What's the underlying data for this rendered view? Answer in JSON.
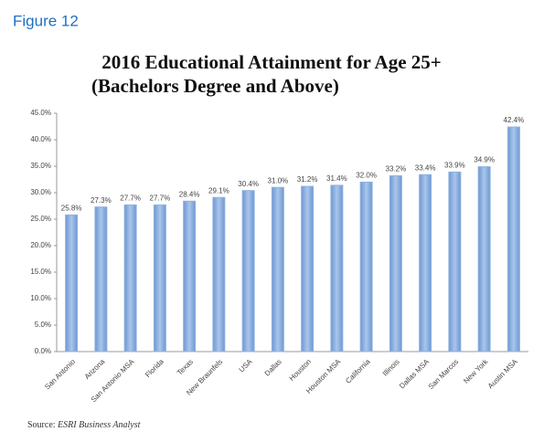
{
  "figure_label": "Figure 12",
  "chart_data": {
    "type": "bar",
    "title": "2016 Educational Attainment for Age 25+",
    "subtitle": "(Bachelors Degree and Above)",
    "categories": [
      "San Antonio",
      "Arizona",
      "San Antonio MSA",
      "Florida",
      "Texas",
      "New Braunfels",
      "USA",
      "Dallas",
      "Houston",
      "Houston MSA",
      "California",
      "Illinois",
      "Dallas MSA",
      "San Marcos",
      "New York",
      "Austin MSA"
    ],
    "values": [
      25.8,
      27.3,
      27.7,
      27.7,
      28.4,
      29.1,
      30.4,
      31.0,
      31.2,
      31.4,
      32.0,
      33.2,
      33.4,
      33.9,
      34.9,
      42.4
    ],
    "value_labels": [
      "25.8%",
      "27.3%",
      "27.7%",
      "27.7%",
      "28.4%",
      "29.1%",
      "30.4%",
      "31.0%",
      "31.2%",
      "31.4%",
      "32.0%",
      "33.2%",
      "33.4%",
      "33.9%",
      "34.9%",
      "42.4%"
    ],
    "color": "#8db3e2",
    "ylim": [
      0,
      45
    ],
    "yticks": [
      {
        "value": 0,
        "label": "0.0%"
      },
      {
        "value": 5,
        "label": "5.0%"
      },
      {
        "value": 10,
        "label": "10.0%"
      },
      {
        "value": 15,
        "label": "15.0%"
      },
      {
        "value": 20,
        "label": "20.0%"
      },
      {
        "value": 25,
        "label": "25.0%"
      },
      {
        "value": 30,
        "label": "30.0%"
      },
      {
        "value": 35,
        "label": "35.0%"
      },
      {
        "value": 40,
        "label": "40.0%"
      },
      {
        "value": 45,
        "label": "45.0%"
      }
    ],
    "grid": false,
    "source_label": "Source:",
    "source": "ESRI Business Analyst"
  }
}
